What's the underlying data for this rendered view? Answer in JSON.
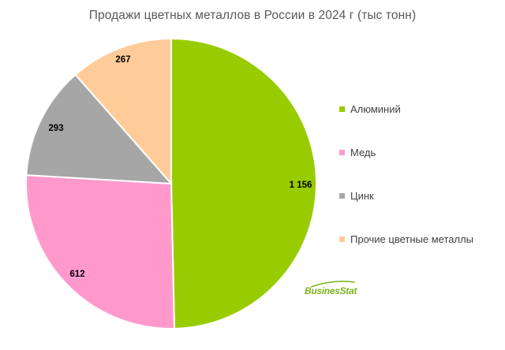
{
  "chart_data": {
    "type": "pie",
    "title": "Продажи цветных металлов в России в 2024 г (тыс тонн)",
    "slices": [
      {
        "name": "Алюминий",
        "value": 1156,
        "label": "1 156",
        "color": "#99cc00"
      },
      {
        "name": "Медь",
        "value": 612,
        "label": "612",
        "color": "#ff99cc"
      },
      {
        "name": "Цинк",
        "value": 293,
        "label": "293",
        "color": "#a6a6a6"
      },
      {
        "name": "Прочие цветные металлы",
        "value": 267,
        "label": "267",
        "color": "#ffcc99"
      }
    ],
    "legend_position": "right"
  },
  "watermark": {
    "text": "BusinesStat"
  }
}
